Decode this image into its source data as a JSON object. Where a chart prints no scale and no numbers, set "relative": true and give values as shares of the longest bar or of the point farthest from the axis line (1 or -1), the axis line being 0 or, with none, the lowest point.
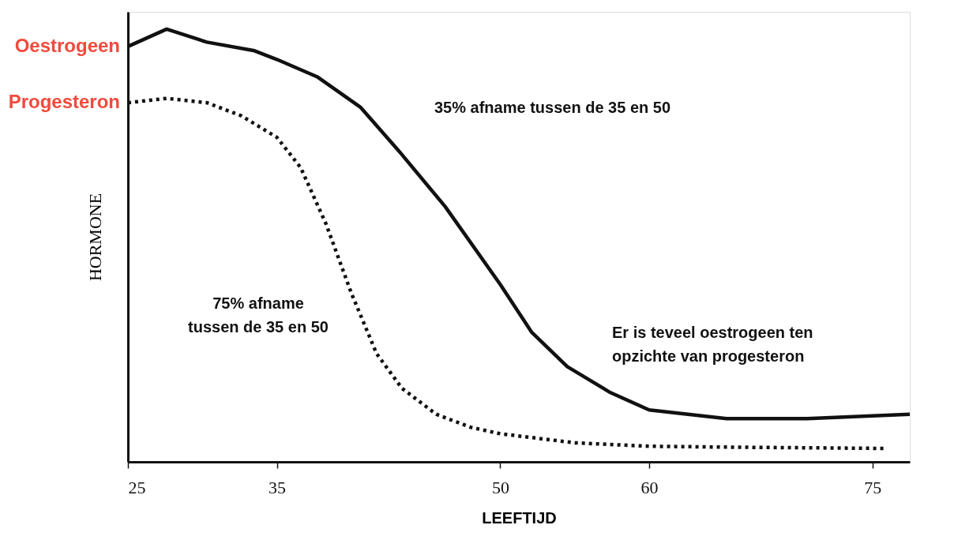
{
  "chart_data": {
    "type": "line",
    "relative": true,
    "xlabel": "LEEFTIJD",
    "ylabel": "HORMONE",
    "xlim": [
      25,
      77.5
    ],
    "xticks": [
      25,
      35,
      50,
      60,
      75
    ],
    "grid": false,
    "marker": "none",
    "series": [
      {
        "name": "Oestrogeen",
        "color": "#111111",
        "line_style": "solid",
        "x": [
          25,
          27.6,
          30.3,
          33.5,
          35,
          37.7,
          40.6,
          43.4,
          46.3,
          50,
          52.1,
          54.5,
          57.4,
          60,
          65.2,
          70.6,
          77.5
        ],
        "values": [
          0.96,
          1.0,
          0.97,
          0.95,
          0.93,
          0.89,
          0.82,
          0.71,
          0.59,
          0.41,
          0.3,
          0.22,
          0.16,
          0.12,
          0.1,
          0.1,
          0.11
        ]
      },
      {
        "name": "Progesteron",
        "color": "#111111",
        "line_style": "dotted",
        "x": [
          25,
          27.6,
          30.3,
          32.6,
          35,
          36.6,
          38.3,
          40.0,
          41.7,
          43.4,
          45.7,
          48.0,
          50,
          55.0,
          60,
          65.2,
          75.8
        ],
        "values": [
          0.83,
          0.84,
          0.83,
          0.8,
          0.75,
          0.68,
          0.55,
          0.39,
          0.25,
          0.17,
          0.11,
          0.08,
          0.065,
          0.044,
          0.036,
          0.034,
          0.031
        ]
      }
    ],
    "annotations": [
      "35% afname tussen de 35 en 50",
      "75% afname\ntussen de 35 en 50",
      "Er is teveel oestrogeen ten\nopzichte van progesteron"
    ]
  }
}
